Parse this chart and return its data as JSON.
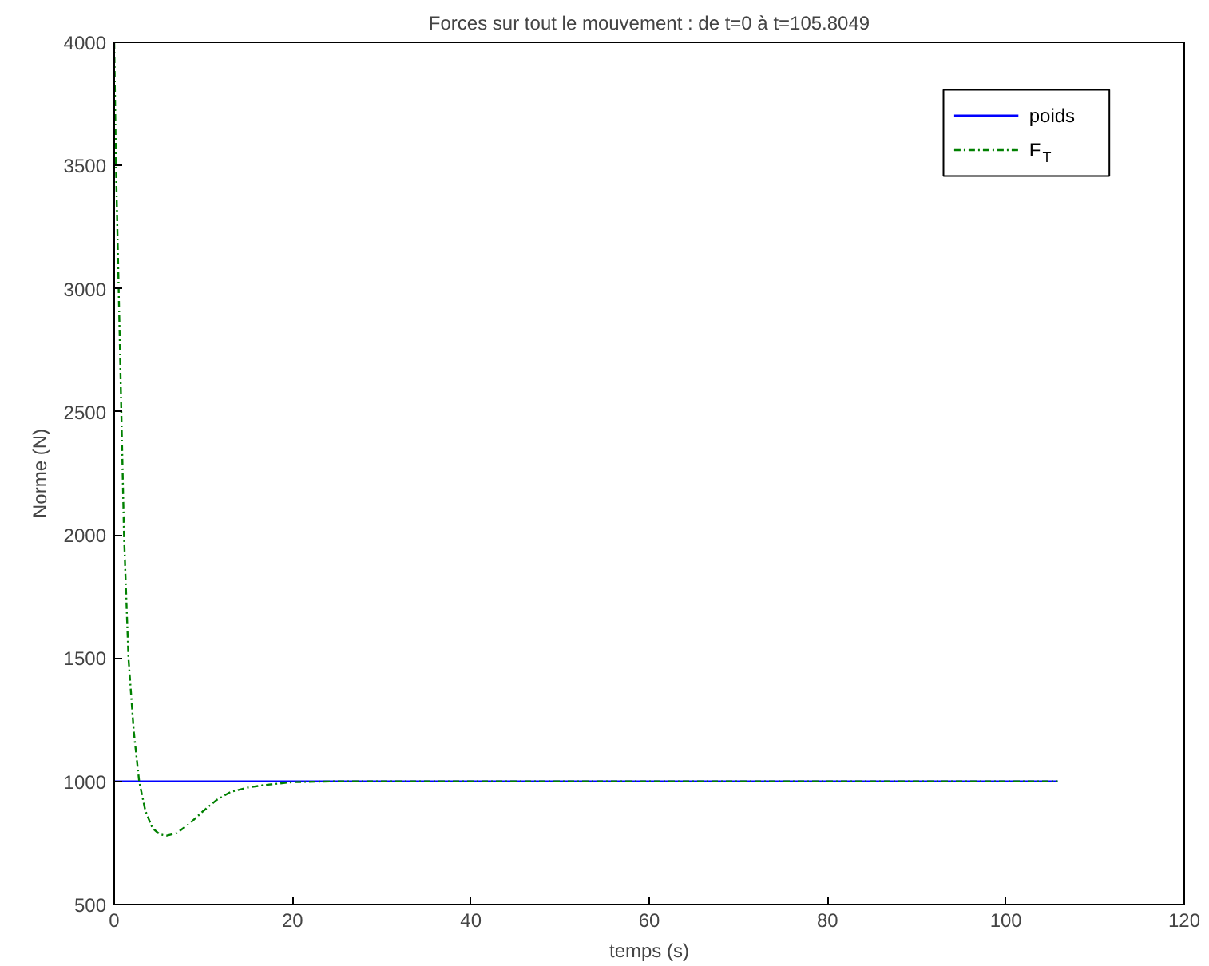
{
  "chart_data": {
    "type": "line",
    "title": "Forces sur tout le mouvement : de t=0 à t=105.8049",
    "xlabel": "temps (s)",
    "ylabel": "Norme (N)",
    "xlim": [
      0,
      120
    ],
    "ylim": [
      500,
      4000
    ],
    "xticks": [
      0,
      20,
      40,
      60,
      80,
      100,
      120
    ],
    "yticks": [
      500,
      1000,
      1500,
      2000,
      2500,
      3000,
      3500,
      4000
    ],
    "grid": false,
    "legend": "top right",
    "series": [
      {
        "name": "poids",
        "color": "#0000ff",
        "line_style": "solid",
        "x": [
          0,
          105.8
        ],
        "values": [
          1000,
          1000
        ]
      },
      {
        "name": "F$_{T}$",
        "color": "#008000",
        "line_style": "dashdot",
        "x": [
          0,
          0.2,
          0.5,
          0.8,
          1.1,
          1.6,
          2.2,
          2.8,
          3.5,
          4.3,
          5.1,
          5.9,
          7,
          8.5,
          10,
          11.5,
          13.1,
          15,
          16.8,
          20,
          25,
          30,
          105.8
        ],
        "values": [
          4000,
          3500,
          3000,
          2500,
          2000,
          1500,
          1200,
          1000,
          880,
          810,
          785,
          780,
          790,
          830,
          880,
          925,
          958,
          975,
          985,
          997,
          1000,
          1000,
          1000
        ]
      }
    ]
  }
}
